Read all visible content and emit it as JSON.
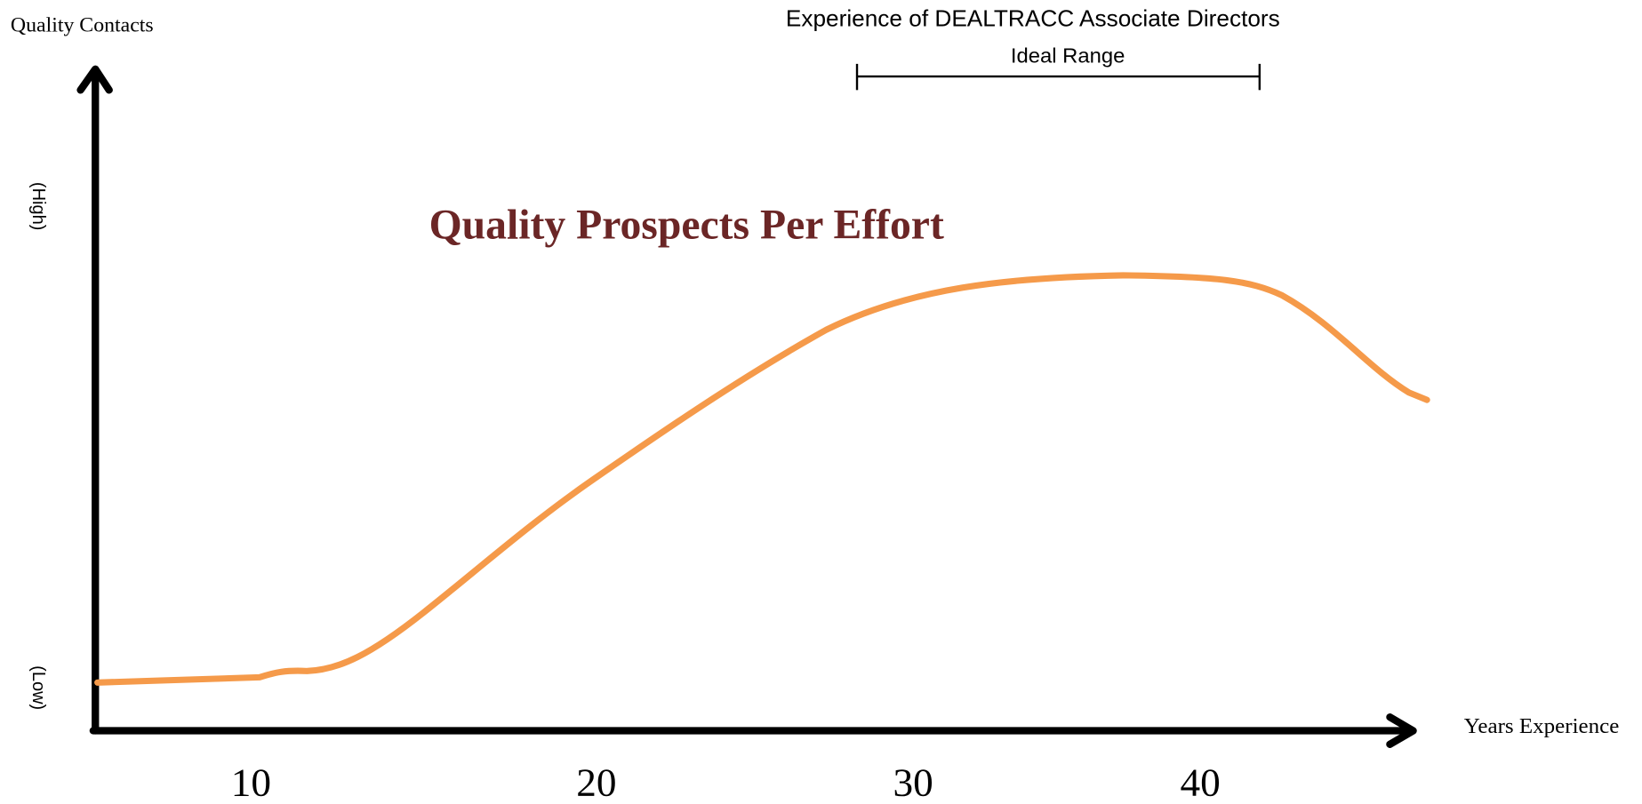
{
  "y_axis_label": "Quality Contacts",
  "header": {
    "title": "Experience of DEALTRACC Associate Directors",
    "range_label": "Ideal Range"
  },
  "y_high": "(High)",
  "y_low": "(Low)",
  "x_axis_label": "Years Experience",
  "x_labels": [
    "10",
    "20",
    "30",
    "40"
  ],
  "curve_label": "Quality Prospects Per Effort"
}
